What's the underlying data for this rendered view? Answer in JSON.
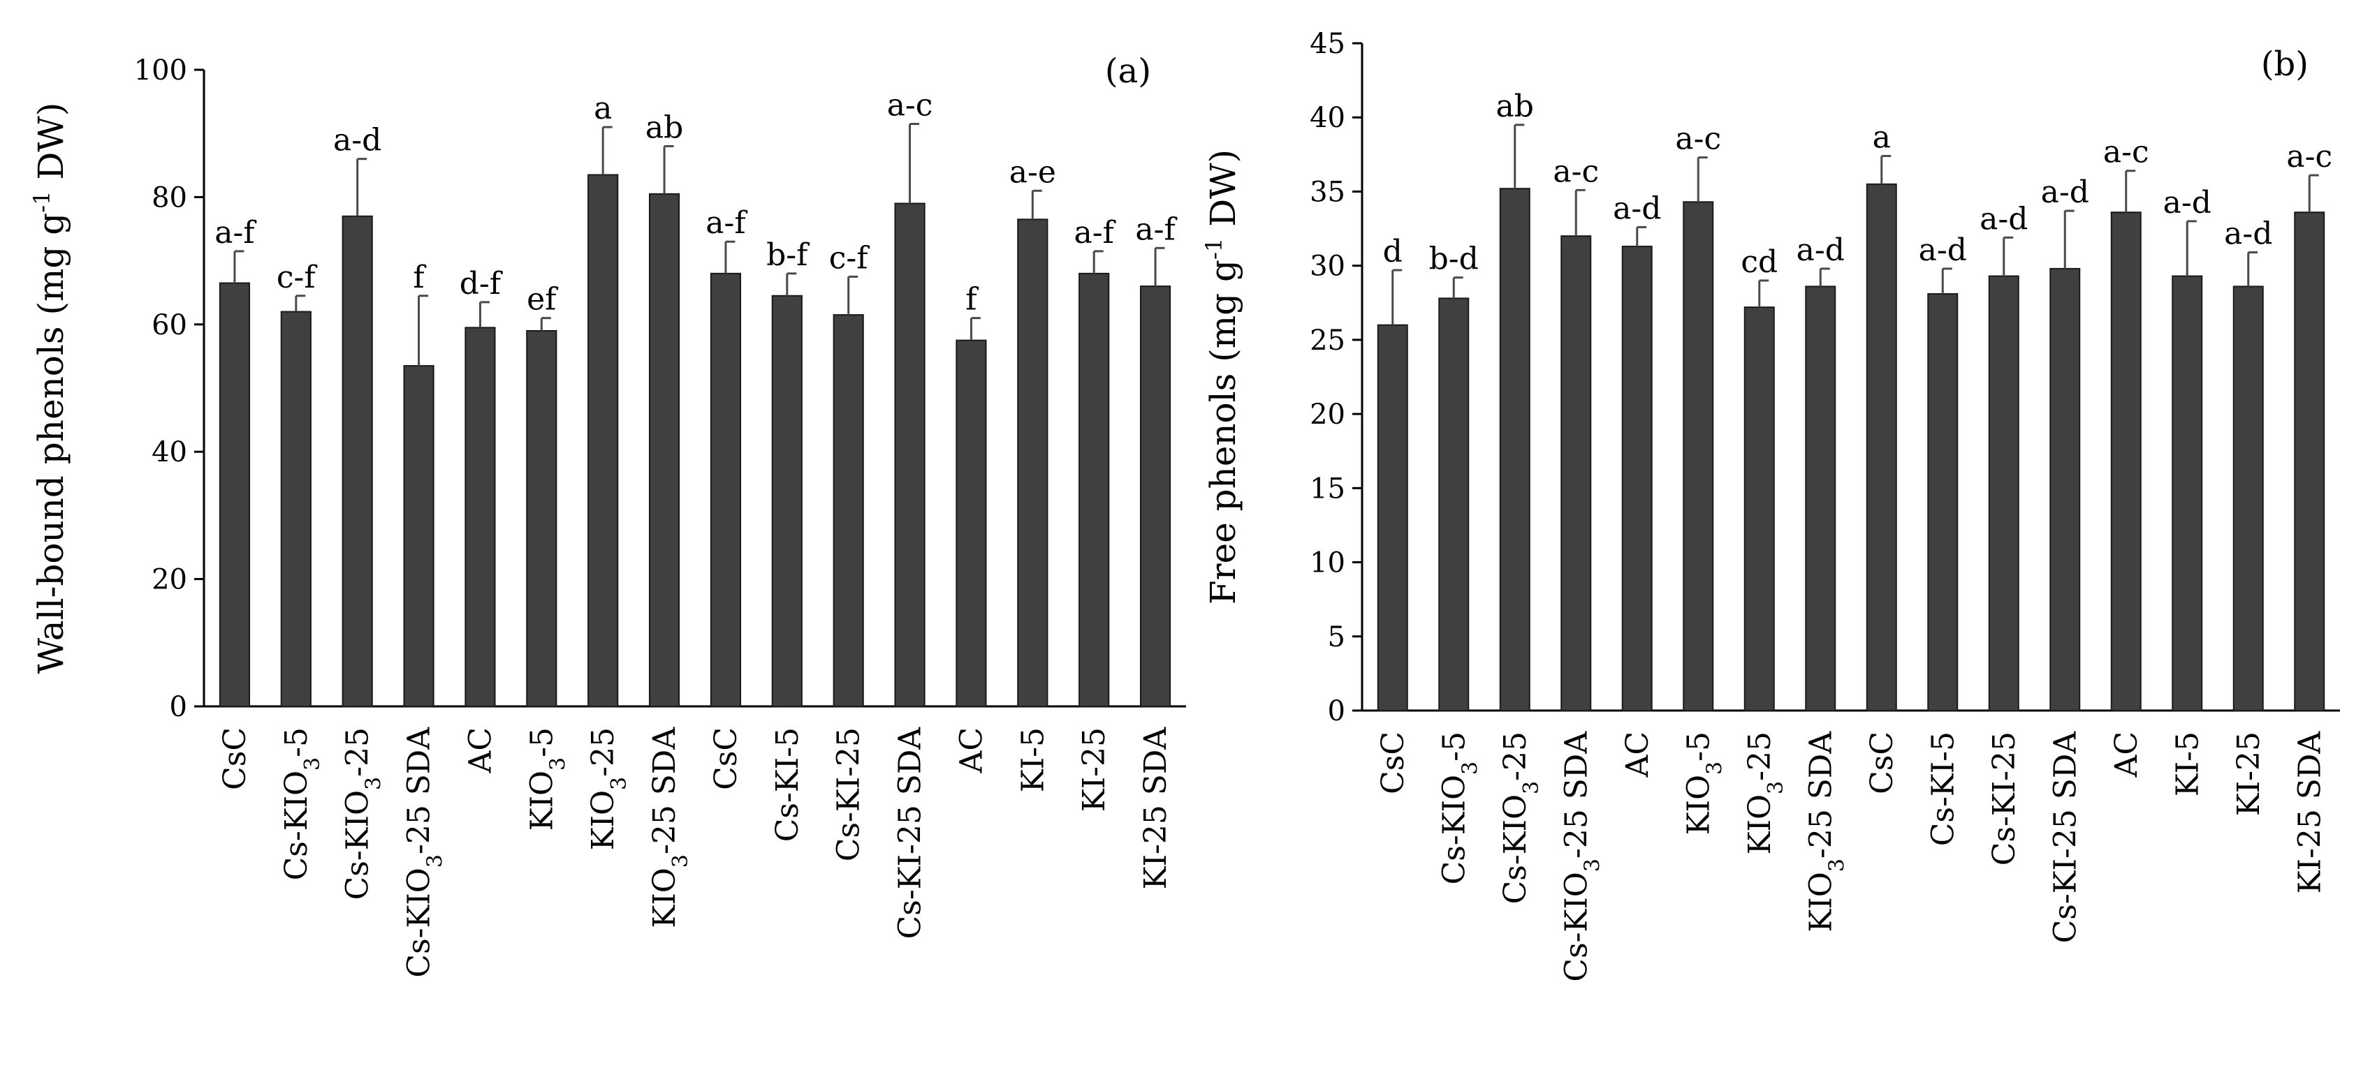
{
  "chart_data": [
    {
      "type": "bar",
      "panel_label": "(a)",
      "ylabel": "Wall-bound phenols (mg g-1 DW)",
      "ylabel_parts": {
        "before": "Wall-bound phenols (mg g",
        "sup": "-1",
        "after": " DW)"
      },
      "ylim": [
        0,
        100
      ],
      "yticks": [
        "0",
        "20",
        "40",
        "60",
        "80",
        "100"
      ],
      "categories": [
        "CsC",
        "Cs-KIO3-5",
        "Cs-KIO3-25",
        "Cs-KIO3-25 SDA",
        "AC",
        "KIO3-5",
        "KIO3-25",
        "KIO3-25 SDA",
        "CsC",
        "Cs-KI-5",
        "Cs-KI-25",
        "Cs-KI-25 SDA",
        "AC",
        "KI-5",
        "KI-25",
        "KI-25 SDA"
      ],
      "values": [
        66.5,
        62,
        77,
        53.5,
        59.5,
        59,
        83.5,
        80.5,
        68,
        64.5,
        61.5,
        79,
        57.5,
        76.5,
        68,
        66
      ],
      "errors": [
        5,
        2.5,
        9,
        11,
        4,
        2,
        7.5,
        7.5,
        5,
        3.5,
        6,
        12.5,
        3.5,
        4.5,
        3.5,
        6
      ],
      "letters": [
        "a-f",
        "c-f",
        "a-d",
        "f",
        "d-f",
        "ef",
        "a",
        "ab",
        "a-f",
        "b-f",
        "c-f",
        "a-c",
        "f",
        "a-e",
        "a-f",
        "a-f"
      ]
    },
    {
      "type": "bar",
      "panel_label": "(b)",
      "ylabel": "Free phenols (mg g-1 DW)",
      "ylabel_parts": {
        "before": "Free phenols  (mg g",
        "sup": "-1",
        "after": " DW)"
      },
      "ylim": [
        0,
        45
      ],
      "yticks": [
        "0",
        "5",
        "10",
        "15",
        "20",
        "25",
        "30",
        "35",
        "40",
        "45"
      ],
      "categories": [
        "CsC",
        "Cs-KIO3-5",
        "Cs-KIO3-25",
        "Cs-KIO3-25 SDA",
        "AC",
        "KIO3-5",
        "KIO3-25",
        "KIO3-25 SDA",
        "CsC",
        "Cs-KI-5",
        "Cs-KI-25",
        "Cs-KI-25 SDA",
        "AC",
        "KI-5",
        "KI-25",
        "KI-25 SDA"
      ],
      "values": [
        26,
        27.8,
        35.2,
        32,
        31.3,
        34.3,
        27.2,
        28.6,
        35.5,
        28.1,
        29.3,
        29.8,
        33.6,
        29.3,
        28.6,
        33.6
      ],
      "errors": [
        3.7,
        1.4,
        4.3,
        3.1,
        1.3,
        3,
        1.8,
        1.2,
        1.9,
        1.7,
        2.6,
        3.9,
        2.8,
        3.7,
        2.3,
        2.5
      ],
      "letters": [
        "d",
        "b-d",
        "ab",
        "a-c",
        "a-d",
        "a-c",
        "cd",
        "a-d",
        "a",
        "a-d",
        "a-d",
        "a-d",
        "a-c",
        "a-d",
        "a-d",
        "a-c"
      ]
    }
  ]
}
